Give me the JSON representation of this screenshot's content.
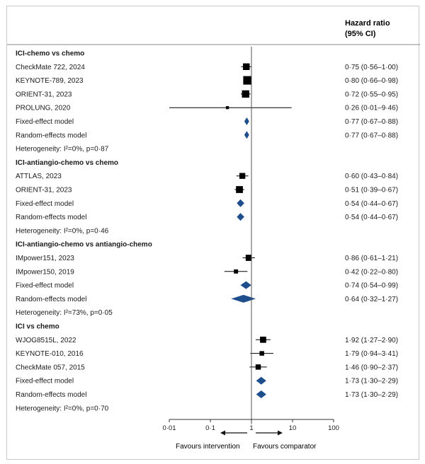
{
  "chart_data": {
    "type": "forest",
    "x_scale": "log",
    "xlim": [
      0.01,
      100
    ],
    "ticks": [
      "0·01",
      "0·1",
      "1",
      "10",
      "100"
    ],
    "tick_values": [
      0.01,
      0.1,
      1,
      10,
      100
    ],
    "reference_line": 1,
    "header": [
      "Hazard ratio",
      "(95% CI)"
    ],
    "favours_left": "Favours intervention",
    "favours_right": "Favours comparator",
    "colors": {
      "study": "#000000",
      "pooled": "#1f4e8c",
      "text": "#1a1a1a"
    },
    "groups": [
      {
        "title": "ICI-chemo vs chemo",
        "studies": [
          {
            "label": "CheckMate 722, 2024",
            "hr": 0.75,
            "lo": 0.56,
            "hi": 1.0,
            "ci_text": "0·75 (0·56–1·00)",
            "weight": 0.55
          },
          {
            "label": "KEYNOTE-789, 2023",
            "hr": 0.8,
            "lo": 0.66,
            "hi": 0.98,
            "ci_text": "0·80 (0·66–0·98)",
            "weight": 1.0
          },
          {
            "label": "ORIENT-31, 2023",
            "hr": 0.72,
            "lo": 0.55,
            "hi": 0.95,
            "ci_text": "0·72 (0·55–0·95)",
            "weight": 0.7
          },
          {
            "label": "PROLUNG, 2020",
            "hr": 0.26,
            "lo": 0.01,
            "hi": 9.46,
            "ci_text": "0·26 (0·01–9·46)",
            "weight": 0.05
          }
        ],
        "pooled": [
          {
            "label": "Fixed-effect model",
            "hr": 0.77,
            "lo": 0.67,
            "hi": 0.88,
            "ci_text": "0·77 (0·67–0·88)"
          },
          {
            "label": "Random-effects model",
            "hr": 0.77,
            "lo": 0.67,
            "hi": 0.88,
            "ci_text": "0·77 (0·67–0·88)"
          }
        ],
        "heterogeneity": "Heterogeneity: I²=0%, p=0·87"
      },
      {
        "title": "ICI-antiangio-chemo vs chemo",
        "studies": [
          {
            "label": "ATTLAS, 2023",
            "hr": 0.6,
            "lo": 0.43,
            "hi": 0.84,
            "ci_text": "0·60 (0·43–0·84)",
            "weight": 0.4
          },
          {
            "label": "ORIENT-31, 2023",
            "hr": 0.51,
            "lo": 0.39,
            "hi": 0.67,
            "ci_text": "0·51 (0·39–0·67)",
            "weight": 0.6
          }
        ],
        "pooled": [
          {
            "label": "Fixed-effect model",
            "hr": 0.54,
            "lo": 0.44,
            "hi": 0.67,
            "ci_text": "0·54 (0·44–0·67)"
          },
          {
            "label": "Random-effects model",
            "hr": 0.54,
            "lo": 0.44,
            "hi": 0.67,
            "ci_text": "0·54 (0·44–0·67)"
          }
        ],
        "heterogeneity": "Heterogeneity: I²=0%, p=0·46"
      },
      {
        "title": "ICI-antiangio-chemo vs antiangio-chemo",
        "studies": [
          {
            "label": "IMpower151, 2023",
            "hr": 0.86,
            "lo": 0.61,
            "hi": 1.21,
            "ci_text": "0·86 (0·61–1·21)",
            "weight": 0.45
          },
          {
            "label": "IMpower150, 2019",
            "hr": 0.42,
            "lo": 0.22,
            "hi": 0.8,
            "ci_text": "0·42 (0·22–0·80)",
            "weight": 0.15
          }
        ],
        "pooled": [
          {
            "label": "Fixed-effect model",
            "hr": 0.74,
            "lo": 0.54,
            "hi": 0.99,
            "ci_text": "0·74 (0·54–0·99)"
          },
          {
            "label": "Random-effects model",
            "hr": 0.64,
            "lo": 0.32,
            "hi": 1.27,
            "ci_text": "0·64 (0·32–1·27)"
          }
        ],
        "heterogeneity": "Heterogeneity: I²=73%, p=0·05"
      },
      {
        "title": "ICI vs chemo",
        "studies": [
          {
            "label": "WJOG8515L, 2022",
            "hr": 1.92,
            "lo": 1.27,
            "hi": 2.9,
            "ci_text": "1·92 (1·27–2·90)",
            "weight": 0.45
          },
          {
            "label": "KEYNOTE-010, 2016",
            "hr": 1.79,
            "lo": 0.94,
            "hi": 3.41,
            "ci_text": "1·79 (0·94–3·41)",
            "weight": 0.2
          },
          {
            "label": "CheckMate 057, 2015",
            "hr": 1.46,
            "lo": 0.9,
            "hi": 2.37,
            "ci_text": "1·46 (0·90–2·37)",
            "weight": 0.3
          }
        ],
        "pooled": [
          {
            "label": "Fixed-effect model",
            "hr": 1.73,
            "lo": 1.3,
            "hi": 2.29,
            "ci_text": "1·73 (1·30–2·29)"
          },
          {
            "label": "Random-effects model",
            "hr": 1.73,
            "lo": 1.3,
            "hi": 2.29,
            "ci_text": "1·73 (1·30–2·29)"
          }
        ],
        "heterogeneity": "Heterogeneity: I²=0%, p=0·70"
      }
    ]
  }
}
